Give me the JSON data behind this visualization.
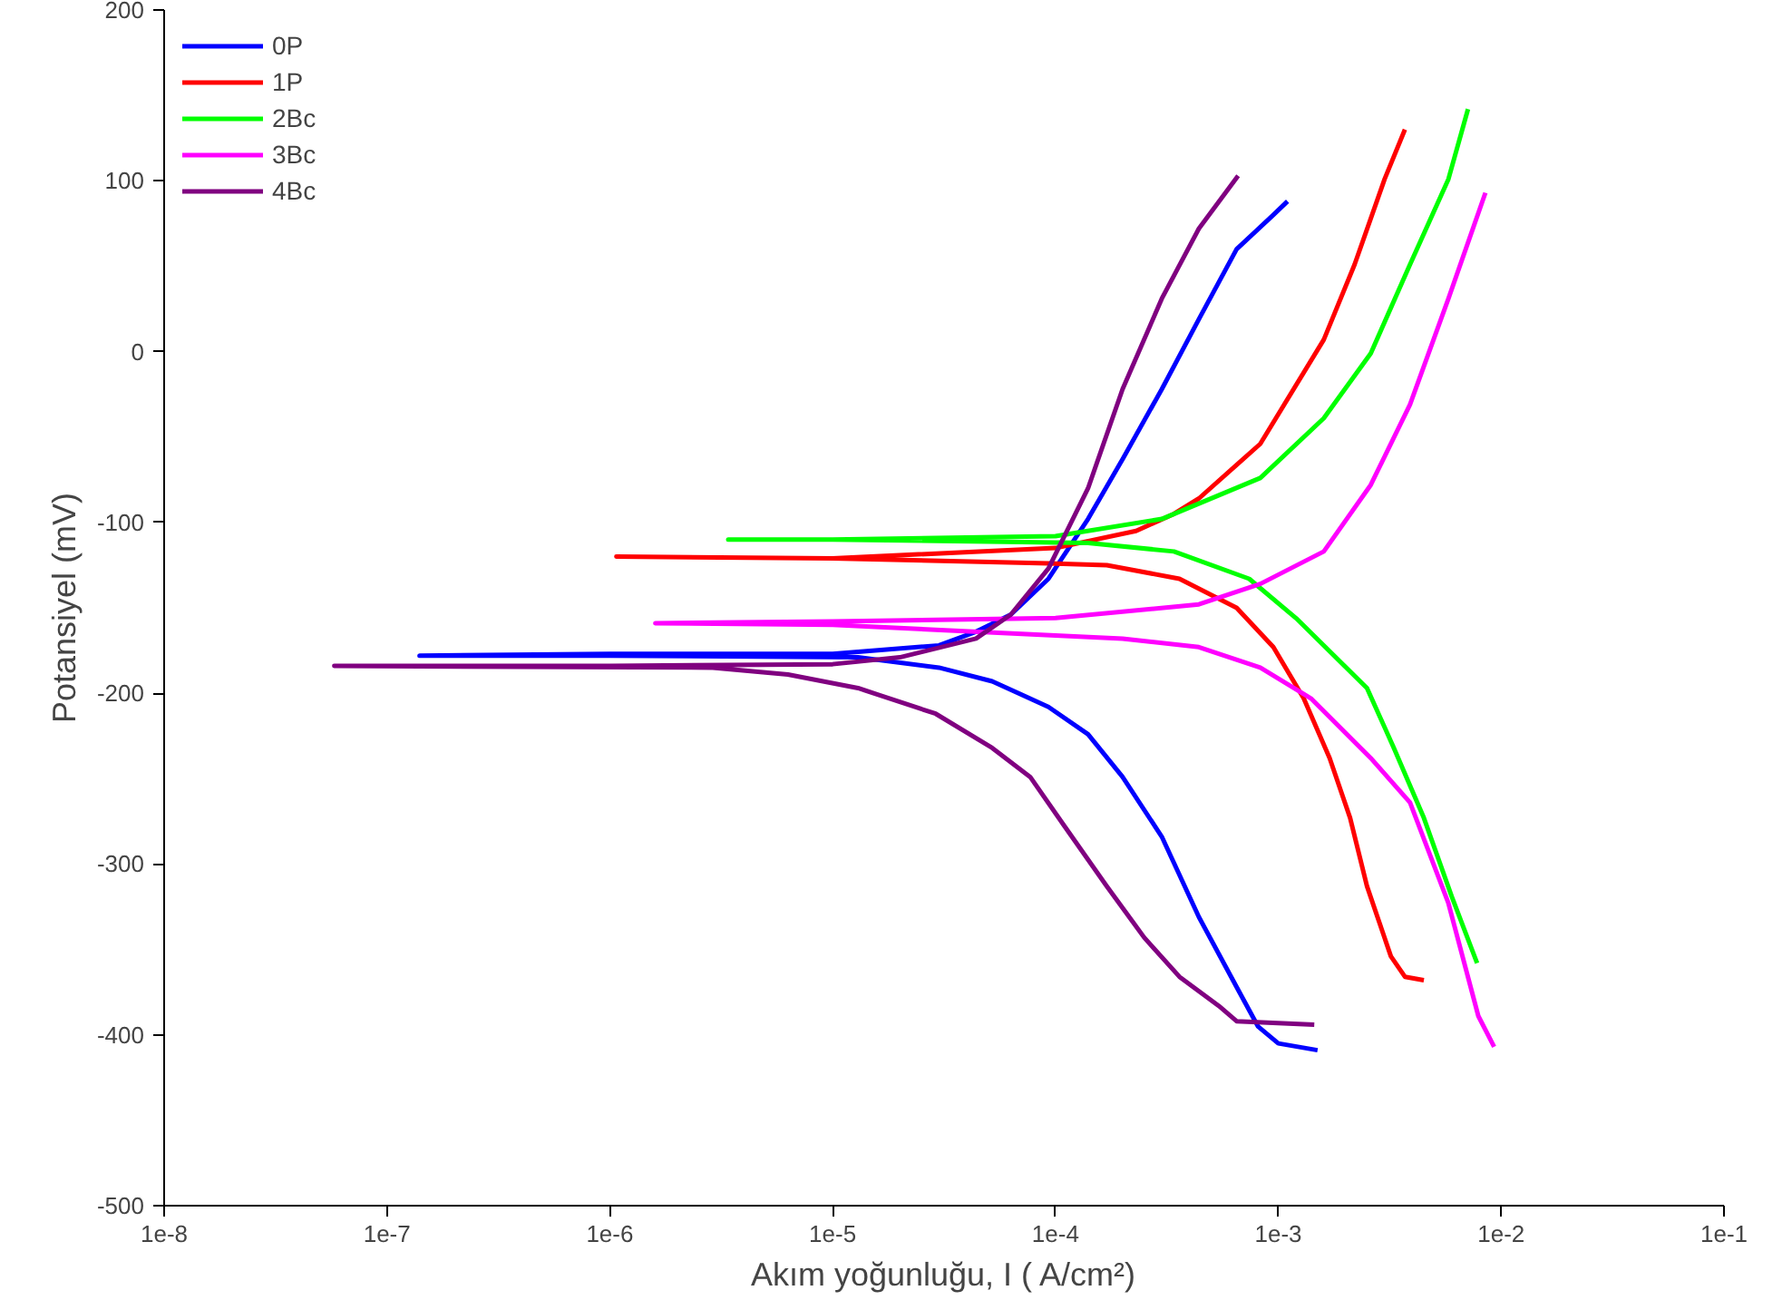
{
  "chart_data": {
    "type": "line",
    "xlabel": "Akım yoğunluğu, I ( A/cm²)",
    "ylabel": "Potansiyel (mV)",
    "log": "x",
    "grid": false,
    "legend": "top left",
    "marker": "none",
    "line_style": "solid",
    "xlim": [
      1e-08,
      0.1
    ],
    "ylim": [
      -500,
      200
    ],
    "xticks": [
      {
        "value": 1e-08,
        "label": "1e-8"
      },
      {
        "value": 1e-07,
        "label": "1e-7"
      },
      {
        "value": 1e-06,
        "label": "1e-6"
      },
      {
        "value": 1e-05,
        "label": "1e-5"
      },
      {
        "value": 0.0001,
        "label": "1e-4"
      },
      {
        "value": 0.001,
        "label": "1e-3"
      },
      {
        "value": 0.01,
        "label": "1e-2"
      },
      {
        "value": 0.1,
        "label": "1e-1"
      }
    ],
    "yticks": [
      -500,
      -400,
      -300,
      -200,
      -100,
      0,
      100,
      200
    ],
    "series": [
      {
        "name": "0P",
        "color": "#0000ff",
        "x": [
          0.0015,
          0.001,
          0.00081,
          0.00065,
          0.00044,
          0.0003,
          0.0002,
          0.00014,
          9.3e-05,
          5.2e-05,
          3e-05,
          1.3e-05,
          1e-06,
          1.4e-07,
          1e-06,
          1e-05,
          3e-05,
          4.4e-05,
          6.3e-05,
          9.3e-05,
          0.00014,
          0.0002,
          0.0003,
          0.00044,
          0.00065,
          0.00095,
          0.0011
        ],
        "values": [
          -409,
          -405,
          -395,
          -372,
          -331,
          -284,
          -249,
          -224,
          -208,
          -193,
          -185,
          -179,
          -178,
          -178,
          -177,
          -177,
          -172,
          -164,
          -154,
          -133,
          -98,
          -63,
          -22,
          19,
          60,
          80,
          88
        ]
      },
      {
        "name": "1P",
        "color": "#ff0000",
        "x": [
          0.0045,
          0.0037,
          0.0032,
          0.0025,
          0.0021,
          0.0017,
          0.0013,
          0.00095,
          0.00065,
          0.00036,
          0.00017,
          9.3e-05,
          1e-05,
          1.07e-06,
          1e-05,
          0.0001,
          0.00023,
          0.00034,
          0.00044,
          0.00083,
          0.0016,
          0.0022,
          0.003,
          0.0037
        ],
        "values": [
          -368,
          -366,
          -354,
          -313,
          -273,
          -238,
          -203,
          -173,
          -150,
          -133,
          -125,
          -124,
          -121,
          -120,
          -121,
          -115,
          -105,
          -95,
          -86,
          -54,
          7,
          51,
          101,
          130
        ]
      },
      {
        "name": "2Bc",
        "color": "#00ff00",
        "x": [
          0.0078,
          0.006,
          0.0045,
          0.0033,
          0.0025,
          0.0012,
          0.00074,
          0.00034,
          0.00014,
          1e-05,
          3.4e-06,
          1e-05,
          0.0001,
          0.0003,
          0.00083,
          0.0016,
          0.0026,
          0.0039,
          0.0058,
          0.0071
        ],
        "values": [
          -358,
          -319,
          -273,
          -232,
          -197,
          -156,
          -133,
          -117,
          -112,
          -110,
          -110,
          -110,
          -108,
          -98,
          -74,
          -39,
          -1,
          51,
          101,
          142
        ]
      },
      {
        "name": "3Bc",
        "color": "#ff00ff",
        "x": [
          0.0093,
          0.0079,
          0.0058,
          0.0039,
          0.0026,
          0.0014,
          0.00083,
          0.00044,
          0.0002,
          1e-05,
          1.6e-06,
          1e-05,
          0.0001,
          0.00044,
          0.00083,
          0.0016,
          0.0026,
          0.0039,
          0.0058,
          0.0085
        ],
        "values": [
          -407,
          -389,
          -323,
          -264,
          -238,
          -203,
          -185,
          -173,
          -168,
          -160,
          -159,
          -158,
          -156,
          -148,
          -136,
          -117,
          -78,
          -31,
          31,
          93
        ]
      },
      {
        "name": "4Bc",
        "color": "#800080",
        "x": [
          0.00145,
          0.00065,
          0.00054,
          0.00036,
          0.00025,
          0.00017,
          0.00011,
          7.7e-05,
          5.2e-05,
          2.9e-05,
          1.3e-05,
          6.3e-06,
          2.9e-06,
          5.8e-08,
          1e-06,
          1e-05,
          2e-05,
          4.4e-05,
          6.3e-05,
          9.3e-05,
          0.00014,
          0.0002,
          0.0003,
          0.00044,
          0.00066
        ],
        "values": [
          -394,
          -392,
          -383,
          -366,
          -343,
          -313,
          -278,
          -249,
          -232,
          -212,
          -197,
          -189,
          -185,
          -184,
          -184,
          -183,
          -179,
          -168,
          -154,
          -127,
          -80,
          -22,
          31,
          72,
          103
        ]
      }
    ]
  }
}
